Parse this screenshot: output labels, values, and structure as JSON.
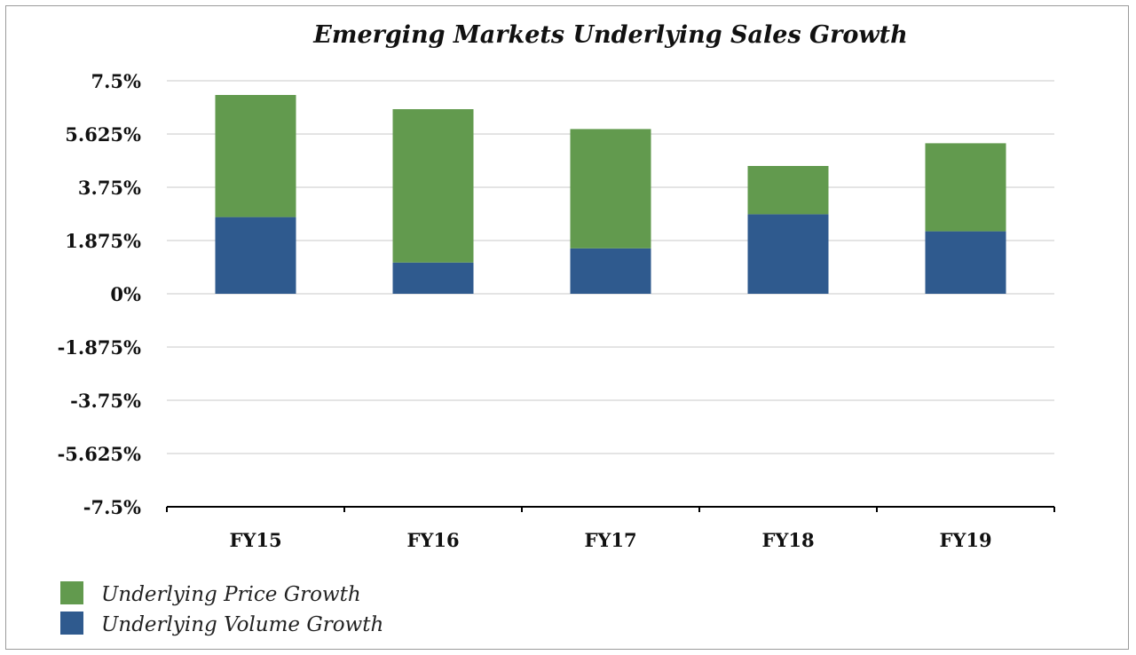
{
  "chart_data": {
    "type": "bar",
    "stacked": true,
    "title": "Emerging Markets Underlying Sales Growth",
    "xlabel": "",
    "ylabel": "",
    "categories": [
      "FY15",
      "FY16",
      "FY17",
      "FY18",
      "FY19"
    ],
    "ylim": [
      -7.5,
      7.5
    ],
    "yticks": [
      7.5,
      5.625,
      3.75,
      1.875,
      0,
      -1.875,
      -3.75,
      -5.625,
      -7.5
    ],
    "ytick_labels": [
      "7.5%",
      "5.625%",
      "3.75%",
      "1.875%",
      "0%",
      "-1.875%",
      "-3.75%",
      "-5.625%",
      "-7.5%"
    ],
    "grid": true,
    "legend_position": "bottom-left",
    "series": [
      {
        "name": "Underlying Volume Growth",
        "color": "#2f5a8e",
        "values": [
          2.7,
          1.1,
          1.6,
          2.8,
          2.2
        ]
      },
      {
        "name": "Underlying Price Growth",
        "color": "#629a4e",
        "values": [
          4.3,
          5.4,
          4.2,
          1.7,
          3.1
        ]
      }
    ],
    "legend_order": [
      "Underlying Price Growth",
      "Underlying Volume Growth"
    ]
  }
}
